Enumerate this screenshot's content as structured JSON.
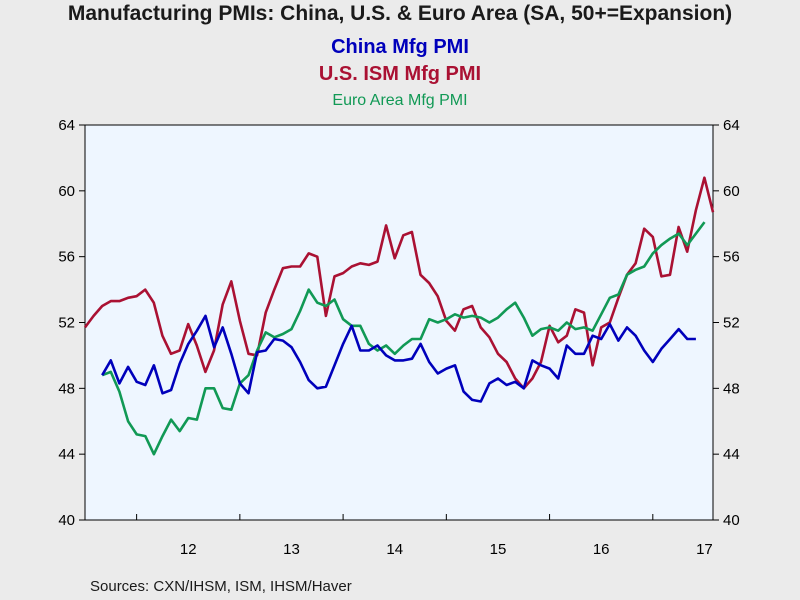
{
  "chart_data": {
    "type": "line",
    "title": "Manufacturing PMIs: China, U.S. & Euro Area (SA, 50+=Expansion)",
    "source": "Sources:  CXN/IHSM, ISM, IHSM/Haver",
    "ylim": [
      40,
      64
    ],
    "yticks": [
      "40",
      "44",
      "48",
      "52",
      "56",
      "60",
      "64"
    ],
    "xlim": [
      2011.5,
      2017.583
    ],
    "xticks": [
      {
        "label": "12",
        "value": 2012.5
      },
      {
        "label": "13",
        "value": 2013.5
      },
      {
        "label": "14",
        "value": 2014.5
      },
      {
        "label": "15",
        "value": 2015.5
      },
      {
        "label": "16",
        "value": 2016.5
      },
      {
        "label": "17",
        "value": 2017.5
      }
    ],
    "grid": false,
    "right_axis": true,
    "series": [
      {
        "name": "China Mfg PMI",
        "color": "#0000bb",
        "start": 2011.667,
        "values": [
          48.8,
          49.7,
          48.3,
          49.3,
          48.4,
          48.2,
          49.4,
          47.7,
          47.9,
          49.5,
          50.7,
          51.5,
          52.4,
          50.5,
          51.7,
          50.1,
          48.3,
          47.7,
          50.2,
          50.3,
          51.0,
          50.9,
          50.5,
          49.6,
          48.5,
          48.0,
          48.1,
          49.4,
          50.7,
          51.8,
          50.3,
          50.3,
          50.6,
          50.0,
          49.7,
          49.7,
          49.8,
          50.7,
          49.6,
          48.9,
          49.2,
          49.4,
          47.8,
          47.3,
          47.2,
          48.3,
          48.6,
          48.2,
          48.4,
          48.0,
          49.7,
          49.4,
          49.2,
          48.6,
          50.6,
          50.1,
          50.1,
          51.2,
          51.0,
          51.9,
          50.9,
          51.7,
          51.2,
          50.3,
          49.6,
          50.4,
          51.0,
          51.6,
          51.0,
          51.0
        ]
      },
      {
        "name": "U.S. ISM Mfg PMI",
        "color": "#aa1133",
        "start": 2011.5,
        "values": [
          51.7,
          52.4,
          53.0,
          53.3,
          53.3,
          53.5,
          53.6,
          54.0,
          53.2,
          51.2,
          50.1,
          50.3,
          51.9,
          50.6,
          49.0,
          50.3,
          53.1,
          54.5,
          52.1,
          50.1,
          50.0,
          52.6,
          54.0,
          55.3,
          55.4,
          55.4,
          56.2,
          56.0,
          52.4,
          54.8,
          55.0,
          55.4,
          55.6,
          55.5,
          55.7,
          57.9,
          55.9,
          57.3,
          57.5,
          54.9,
          54.4,
          53.6,
          52.1,
          51.5,
          52.8,
          53.0,
          51.7,
          51.1,
          50.1,
          49.6,
          48.6,
          48.0,
          48.6,
          49.6,
          51.8,
          50.8,
          51.2,
          52.8,
          52.6,
          49.4,
          51.7,
          52.0,
          53.5,
          54.9,
          55.6,
          57.7,
          57.2,
          54.8,
          54.9,
          57.8,
          56.3,
          58.8,
          60.8,
          58.7
        ]
      },
      {
        "name": "Euro Area Mfg PMI",
        "color": "#119955",
        "start": 2011.667,
        "values": [
          48.8,
          49.0,
          47.8,
          46.0,
          45.2,
          45.1,
          44.0,
          45.1,
          46.1,
          45.4,
          46.2,
          46.1,
          48.0,
          48.0,
          46.8,
          46.7,
          48.3,
          48.8,
          50.3,
          51.4,
          51.1,
          51.3,
          51.6,
          52.7,
          54.0,
          53.2,
          53.0,
          53.4,
          52.2,
          51.8,
          51.8,
          50.7,
          50.3,
          50.6,
          50.1,
          50.6,
          51.0,
          51.0,
          52.2,
          52.0,
          52.2,
          52.5,
          52.3,
          52.4,
          52.3,
          52.0,
          52.3,
          52.8,
          53.2,
          52.3,
          51.2,
          51.6,
          51.7,
          51.5,
          52.0,
          51.6,
          51.7,
          51.5,
          52.5,
          53.5,
          53.7,
          54.9,
          55.2,
          55.4,
          56.2,
          56.7,
          57.1,
          57.4,
          56.7,
          57.4,
          58.1
        ]
      }
    ]
  }
}
